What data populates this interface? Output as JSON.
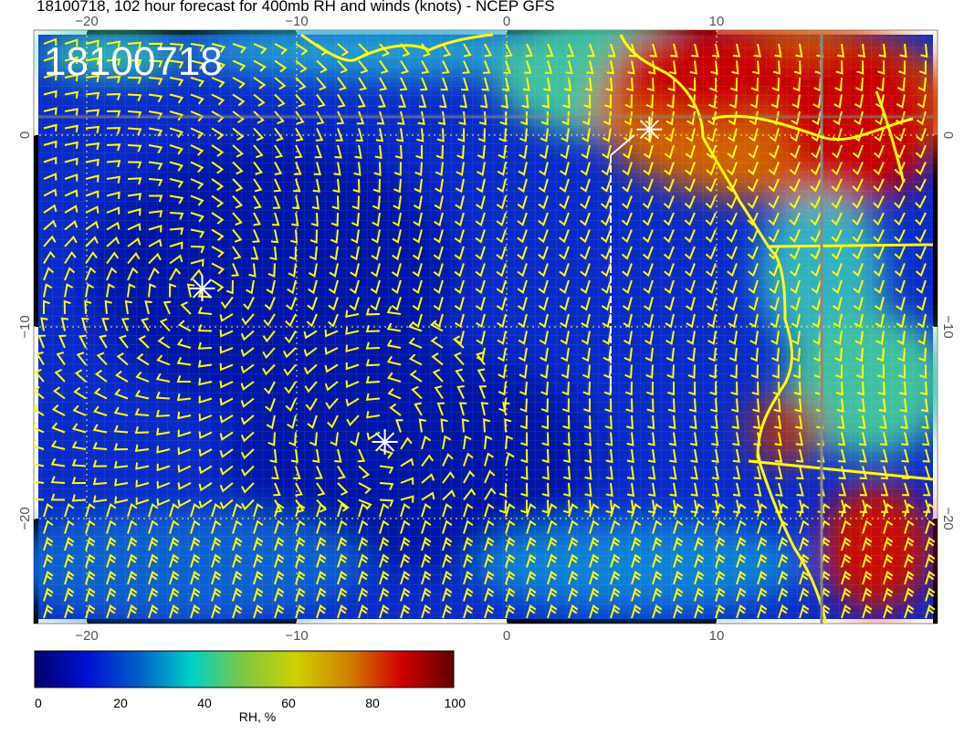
{
  "title": "18100718, 102 hour forecast for 400mb RH and winds (knots) - NCEP GFS",
  "map": {
    "date_label": "18100718",
    "lon_range": [
      -22.5,
      20.5
    ],
    "lat_range": [
      -25.5,
      5.5
    ],
    "lon_ticks": [
      "−20",
      "−10",
      "0",
      "10"
    ],
    "lat_ticks": [
      "0",
      "−10",
      "−20"
    ],
    "field": "400mb relative humidity",
    "overlay": "wind barbs (knots)",
    "markers": [
      {
        "icon": "asterisk-marker-icon",
        "lon": -14.5,
        "lat": -8
      },
      {
        "icon": "asterisk-marker-icon",
        "lon": -5.8,
        "lat": -16
      },
      {
        "icon": "asterisk-marker-icon",
        "lon": 6.8,
        "lat": 0.3
      }
    ],
    "colors": {
      "barbs": "#ffff00",
      "coastline": "#ffff00",
      "markers": "#ffffff"
    }
  },
  "colorbar": {
    "label": "RH, %",
    "ticks": [
      "0",
      "20",
      "40",
      "60",
      "80",
      "100"
    ],
    "range": [
      0,
      100
    ],
    "colors": [
      "#00006e",
      "#0010d0",
      "#0060c8",
      "#00d0c8",
      "#80c840",
      "#d0d000",
      "#d08000",
      "#d00000",
      "#600000"
    ]
  }
}
